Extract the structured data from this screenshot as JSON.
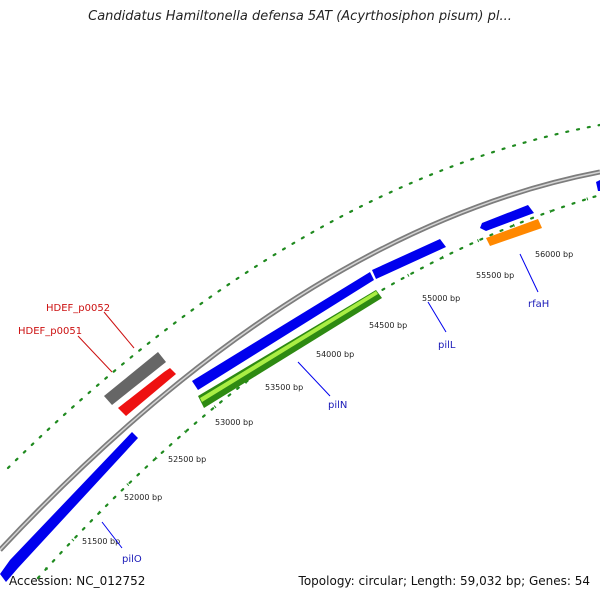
{
  "title": "Candidatus Hamiltonella defensa 5AT (Acyrthosiphon pisum) pl...",
  "footer": {
    "accession": "Accession: NC_012752",
    "summary": "Topology: circular; Length: 59,032 bp; Genes: 54"
  },
  "colors": {
    "backbone": "#8a8a8a",
    "forward_gene": "#0000ee",
    "reverse_gene": "#ff8800",
    "red_gene": "#ee1111",
    "gray_gene": "#666666",
    "highlight_gene": "#33aa11",
    "dots": "#1f8a1f",
    "label_blue": "#1a1ab8",
    "label_red": "#cc1111"
  },
  "ruler_labels": [
    "51500 bp",
    "52000 bp",
    "52500 bp",
    "53000 bp",
    "53500 bp",
    "54000 bp",
    "54500 bp",
    "55000 bp",
    "55500 bp",
    "56000 bp"
  ],
  "gene_labels": [
    {
      "text": "pilO",
      "color": "blue"
    },
    {
      "text": "pilN",
      "color": "blue"
    },
    {
      "text": "pilL",
      "color": "blue"
    },
    {
      "text": "rfaH",
      "color": "blue"
    },
    {
      "text": "HDEF_p0051",
      "color": "red"
    },
    {
      "text": "HDEF_p0052",
      "color": "red"
    }
  ]
}
